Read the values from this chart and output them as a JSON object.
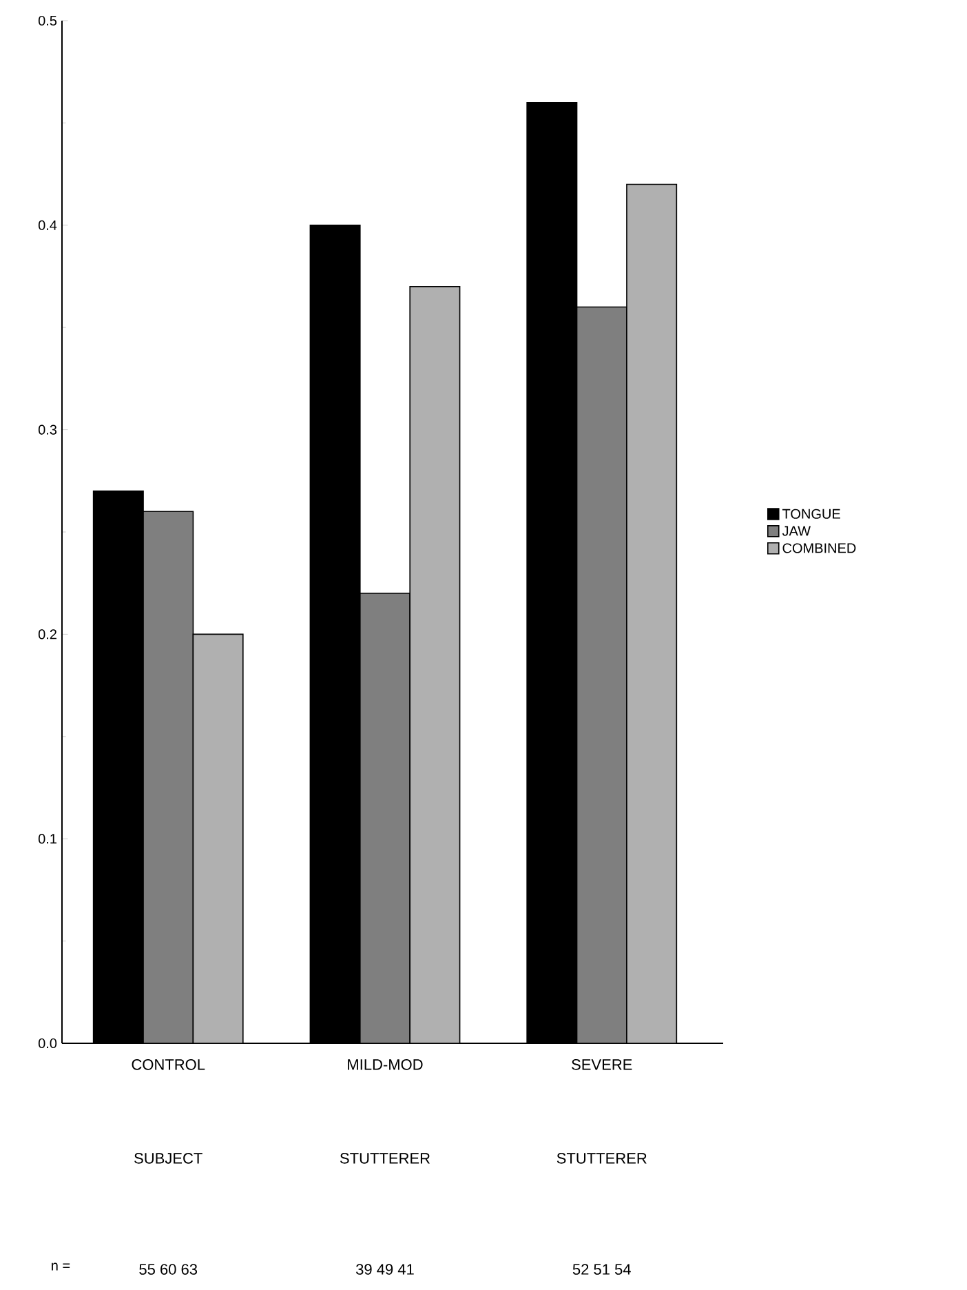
{
  "chart_data": {
    "type": "bar",
    "categories": [
      "CONTROL SUBJECT",
      "MILD-MOD STUTTERER",
      "SEVERE STUTTERER"
    ],
    "series": [
      {
        "name": "TONGUE",
        "color": "#000000",
        "values": [
          0.27,
          0.4,
          0.46
        ]
      },
      {
        "name": "JAW",
        "color": "#7f7f7f",
        "values": [
          0.26,
          0.22,
          0.36
        ]
      },
      {
        "name": "COMBINED",
        "color": "#b0b0b0",
        "values": [
          0.2,
          0.37,
          0.42
        ]
      }
    ],
    "ylim": [
      0,
      0.5
    ],
    "yticks": [
      {
        "value": 0,
        "label": "0.0"
      },
      0.1,
      0.2,
      0.3,
      0.4,
      0.5
    ],
    "legend": "right",
    "annotations": [
      "n =",
      "55 60 63",
      "39 49 41",
      "52 51 54"
    ]
  }
}
